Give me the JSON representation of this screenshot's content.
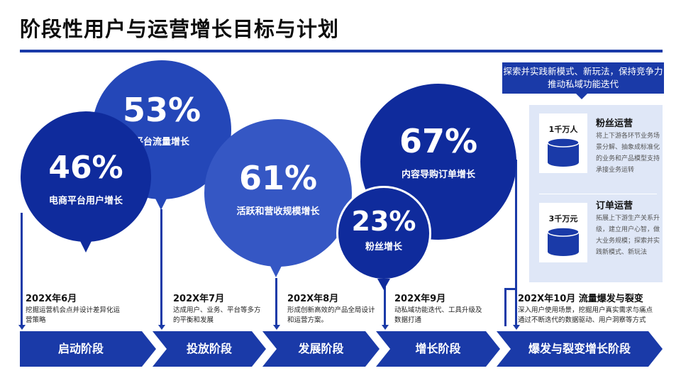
{
  "title": "阶段性用户与运营增长目标与计划",
  "bubbles": [
    {
      "pct": "46%",
      "label": "电商平台用户增长"
    },
    {
      "pct": "53%",
      "label": "平台流量增长"
    },
    {
      "pct": "61%",
      "label": "活跃和营收规模增长"
    },
    {
      "pct": "67%",
      "label": "内容导购订单增长"
    },
    {
      "pct": "23%",
      "label": "粉丝增长"
    }
  ],
  "milestones": [
    {
      "date": "202X年6月",
      "desc": "挖掘运营机会点并设计差异化运营策略"
    },
    {
      "date": "202X年7月",
      "desc": "达成用户、业务、平台等多方的平衡和发展"
    },
    {
      "date": "202X年8月",
      "desc": "形成创新高效的产品全局设计和运营方案。"
    },
    {
      "date": "202X年9月",
      "desc": "动私域功能迭代、工具升级及数据打通"
    },
    {
      "date": "202X年10月  流量爆发与裂变",
      "desc": "深入用户使用场景，挖掘用户真实需求与痛点通过不断迭代的数据驱动、用户洞察等方式"
    }
  ],
  "stages": [
    "启动阶段",
    "投放阶段",
    "发展阶段",
    "增长阶段",
    "爆发与裂变增长阶段"
  ],
  "callout": "探索并实践新模式、新玩法，保持竞争力推动私域功能迭代",
  "panel": [
    {
      "stat": "1千万人",
      "title": "粉丝运营",
      "text": "将上下游各环节业务场景分解、抽象成标准化的业务和产品模型支持承接业务运转",
      "icon": "database-icon"
    },
    {
      "stat": "3千万元",
      "title": "订单运营",
      "text": "拓展上下游生产关系升级，建立用户心智，做大业务规模；探索并实践新模式、新玩法",
      "icon": "database-icon"
    }
  ],
  "colors": {
    "primary": "#1a3aa8",
    "panel_bg": "#dfe7f7"
  }
}
